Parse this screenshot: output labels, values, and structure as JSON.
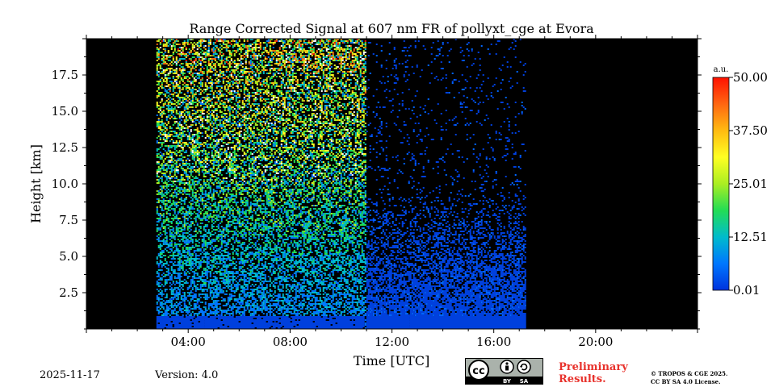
{
  "chart_data": {
    "type": "heatmap",
    "title": "Range Corrected Signal at 607 nm FR of pollyxt_cge at Evora",
    "xlabel": "Time [UTC]",
    "ylabel": "Height [km]",
    "xlim": [
      0,
      24
    ],
    "ylim": [
      0,
      20
    ],
    "x_ticks": [
      {
        "value": 4,
        "label": "04:00"
      },
      {
        "value": 8,
        "label": "08:00"
      },
      {
        "value": 12,
        "label": "12:00"
      },
      {
        "value": 16,
        "label": "16:00"
      },
      {
        "value": 20,
        "label": "20:00"
      }
    ],
    "y_ticks": [
      {
        "value": 2.5,
        "label": "2.5"
      },
      {
        "value": 5.0,
        "label": "5.0"
      },
      {
        "value": 7.5,
        "label": "7.5"
      },
      {
        "value": 10.0,
        "label": "10.0"
      },
      {
        "value": 12.5,
        "label": "12.5"
      },
      {
        "value": 15.0,
        "label": "15.0"
      },
      {
        "value": 17.5,
        "label": "17.5"
      }
    ],
    "data_time_range": [
      2.75,
      17.25
    ],
    "daylight_transition_time": 10.9,
    "colorbar": {
      "unit": "a.u.",
      "min": 0.01,
      "max": 50.0,
      "ticks": [
        "0.01",
        "12.51",
        "25.01",
        "37.50",
        "50.00"
      ],
      "tick_values": [
        0.01,
        12.51,
        25.01,
        37.5,
        50.0
      ],
      "colors": [
        "#0033dd",
        "#0077ff",
        "#00bbcc",
        "#22dd55",
        "#aaee22",
        "#ffff22",
        "#ffbb11",
        "#ff6611",
        "#ff1100"
      ]
    },
    "background_color": "#000000",
    "signal_base_color": "#0040dd"
  },
  "footer": {
    "date": "2025-11-17",
    "version": "Version: 4.0",
    "preliminary_line1": "Preliminary",
    "preliminary_line2": "Results.",
    "copyright_line1": "© TROPOS & CGE 2025.",
    "copyright_line2": "CC BY SA 4.0 License.",
    "license_badge": {
      "cc": "cc",
      "by": "BY",
      "sa": "SA"
    }
  }
}
